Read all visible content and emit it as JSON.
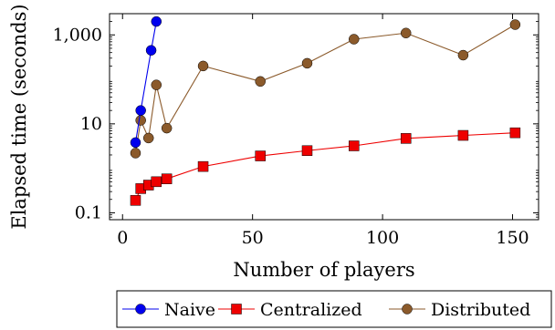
{
  "chart_data": {
    "type": "line",
    "xlabel": "Number of players",
    "ylabel": "Elapsed time (seconds)",
    "xlim": [
      -5,
      160
    ],
    "ylim": [
      0.07,
      3000
    ],
    "y_scale": "log",
    "grid": false,
    "legend_position": "bottom-center",
    "x_ticks": [
      {
        "value": 0,
        "label": "0"
      },
      {
        "value": 50,
        "label": "50"
      },
      {
        "value": 100,
        "label": "100"
      },
      {
        "value": 150,
        "label": "150"
      }
    ],
    "y_ticks": [
      {
        "value": 0.1,
        "label": "0.1"
      },
      {
        "value": 10,
        "label": "10"
      },
      {
        "value": 1000,
        "label": "1,000"
      }
    ],
    "series": [
      {
        "name": "Naive",
        "color": "#0000ee",
        "marker": "circle",
        "x": [
          5,
          7,
          11,
          13
        ],
        "y": [
          3.8,
          20,
          450,
          2000
        ]
      },
      {
        "name": "Centralized",
        "color": "#ee0000",
        "marker": "square",
        "x": [
          5,
          7,
          10,
          13,
          17,
          31,
          53,
          71,
          89,
          109,
          131,
          151
        ],
        "y": [
          0.19,
          0.35,
          0.42,
          0.5,
          0.58,
          1.1,
          1.9,
          2.5,
          3.2,
          4.7,
          5.5,
          6.3
        ]
      },
      {
        "name": "Distributed",
        "color": "#8b5a2b",
        "marker": "circle",
        "x": [
          5,
          7,
          10,
          13,
          17,
          31,
          53,
          71,
          89,
          109,
          131,
          151
        ],
        "y": [
          2.2,
          12,
          4.8,
          75,
          8,
          200,
          90,
          230,
          800,
          1100,
          350,
          1700
        ]
      }
    ]
  }
}
